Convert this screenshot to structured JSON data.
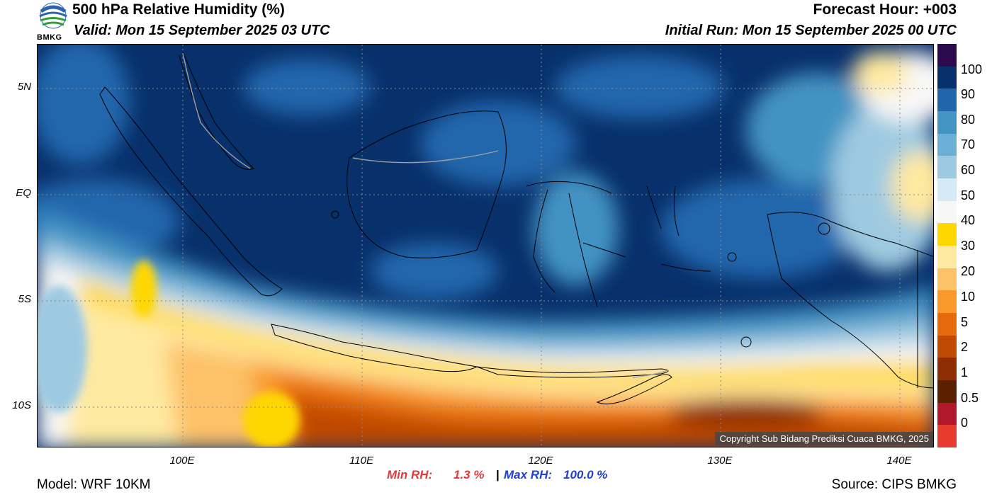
{
  "header": {
    "title": "500 hPa Relative Humidity (%)",
    "valid": "Valid: Mon 15 September 2025 03 UTC",
    "forecast_hour": "Forecast Hour: +003",
    "initial_run": "Initial Run: Mon 15 September 2025 00 UTC",
    "logo_text": "BMKG"
  },
  "axes": {
    "lat_labels": [
      "5N",
      "EQ",
      "5S",
      "10S"
    ],
    "lon_labels": [
      "100E",
      "110E",
      "120E",
      "130E",
      "140E"
    ]
  },
  "colorbar": {
    "labels": [
      "100",
      "90",
      "80",
      "70",
      "60",
      "50",
      "40",
      "30",
      "20",
      "10",
      "5",
      "2",
      "1",
      "0.5",
      "0"
    ],
    "colors": [
      "#2d0a4e",
      "#08306b",
      "#2166ac",
      "#4393c3",
      "#6baed6",
      "#9ecae1",
      "#d6eaf5",
      "#f7f7f7",
      "#ffd700",
      "#ffe9a0",
      "#fdc167",
      "#f99a2a",
      "#e66a0a",
      "#c04a04",
      "#8c2d04",
      "#5a2000",
      "#b2182b",
      "#e63b2e"
    ]
  },
  "stats": {
    "min_label": "Min RH:",
    "min_value": "1.3 %",
    "separator": "|",
    "max_label": "Max RH:",
    "max_value": "100.0 %"
  },
  "footer": {
    "model": "Model: WRF 10KM",
    "source": "Source: CIPS BMKG",
    "copyright": "Copyright Sub Bidang Prediksi Cuaca BMKG, 2025"
  },
  "map": {
    "domain_lon": [
      92,
      142
    ],
    "domain_lat": [
      -12,
      7
    ],
    "field": "500 hPa relative humidity"
  }
}
